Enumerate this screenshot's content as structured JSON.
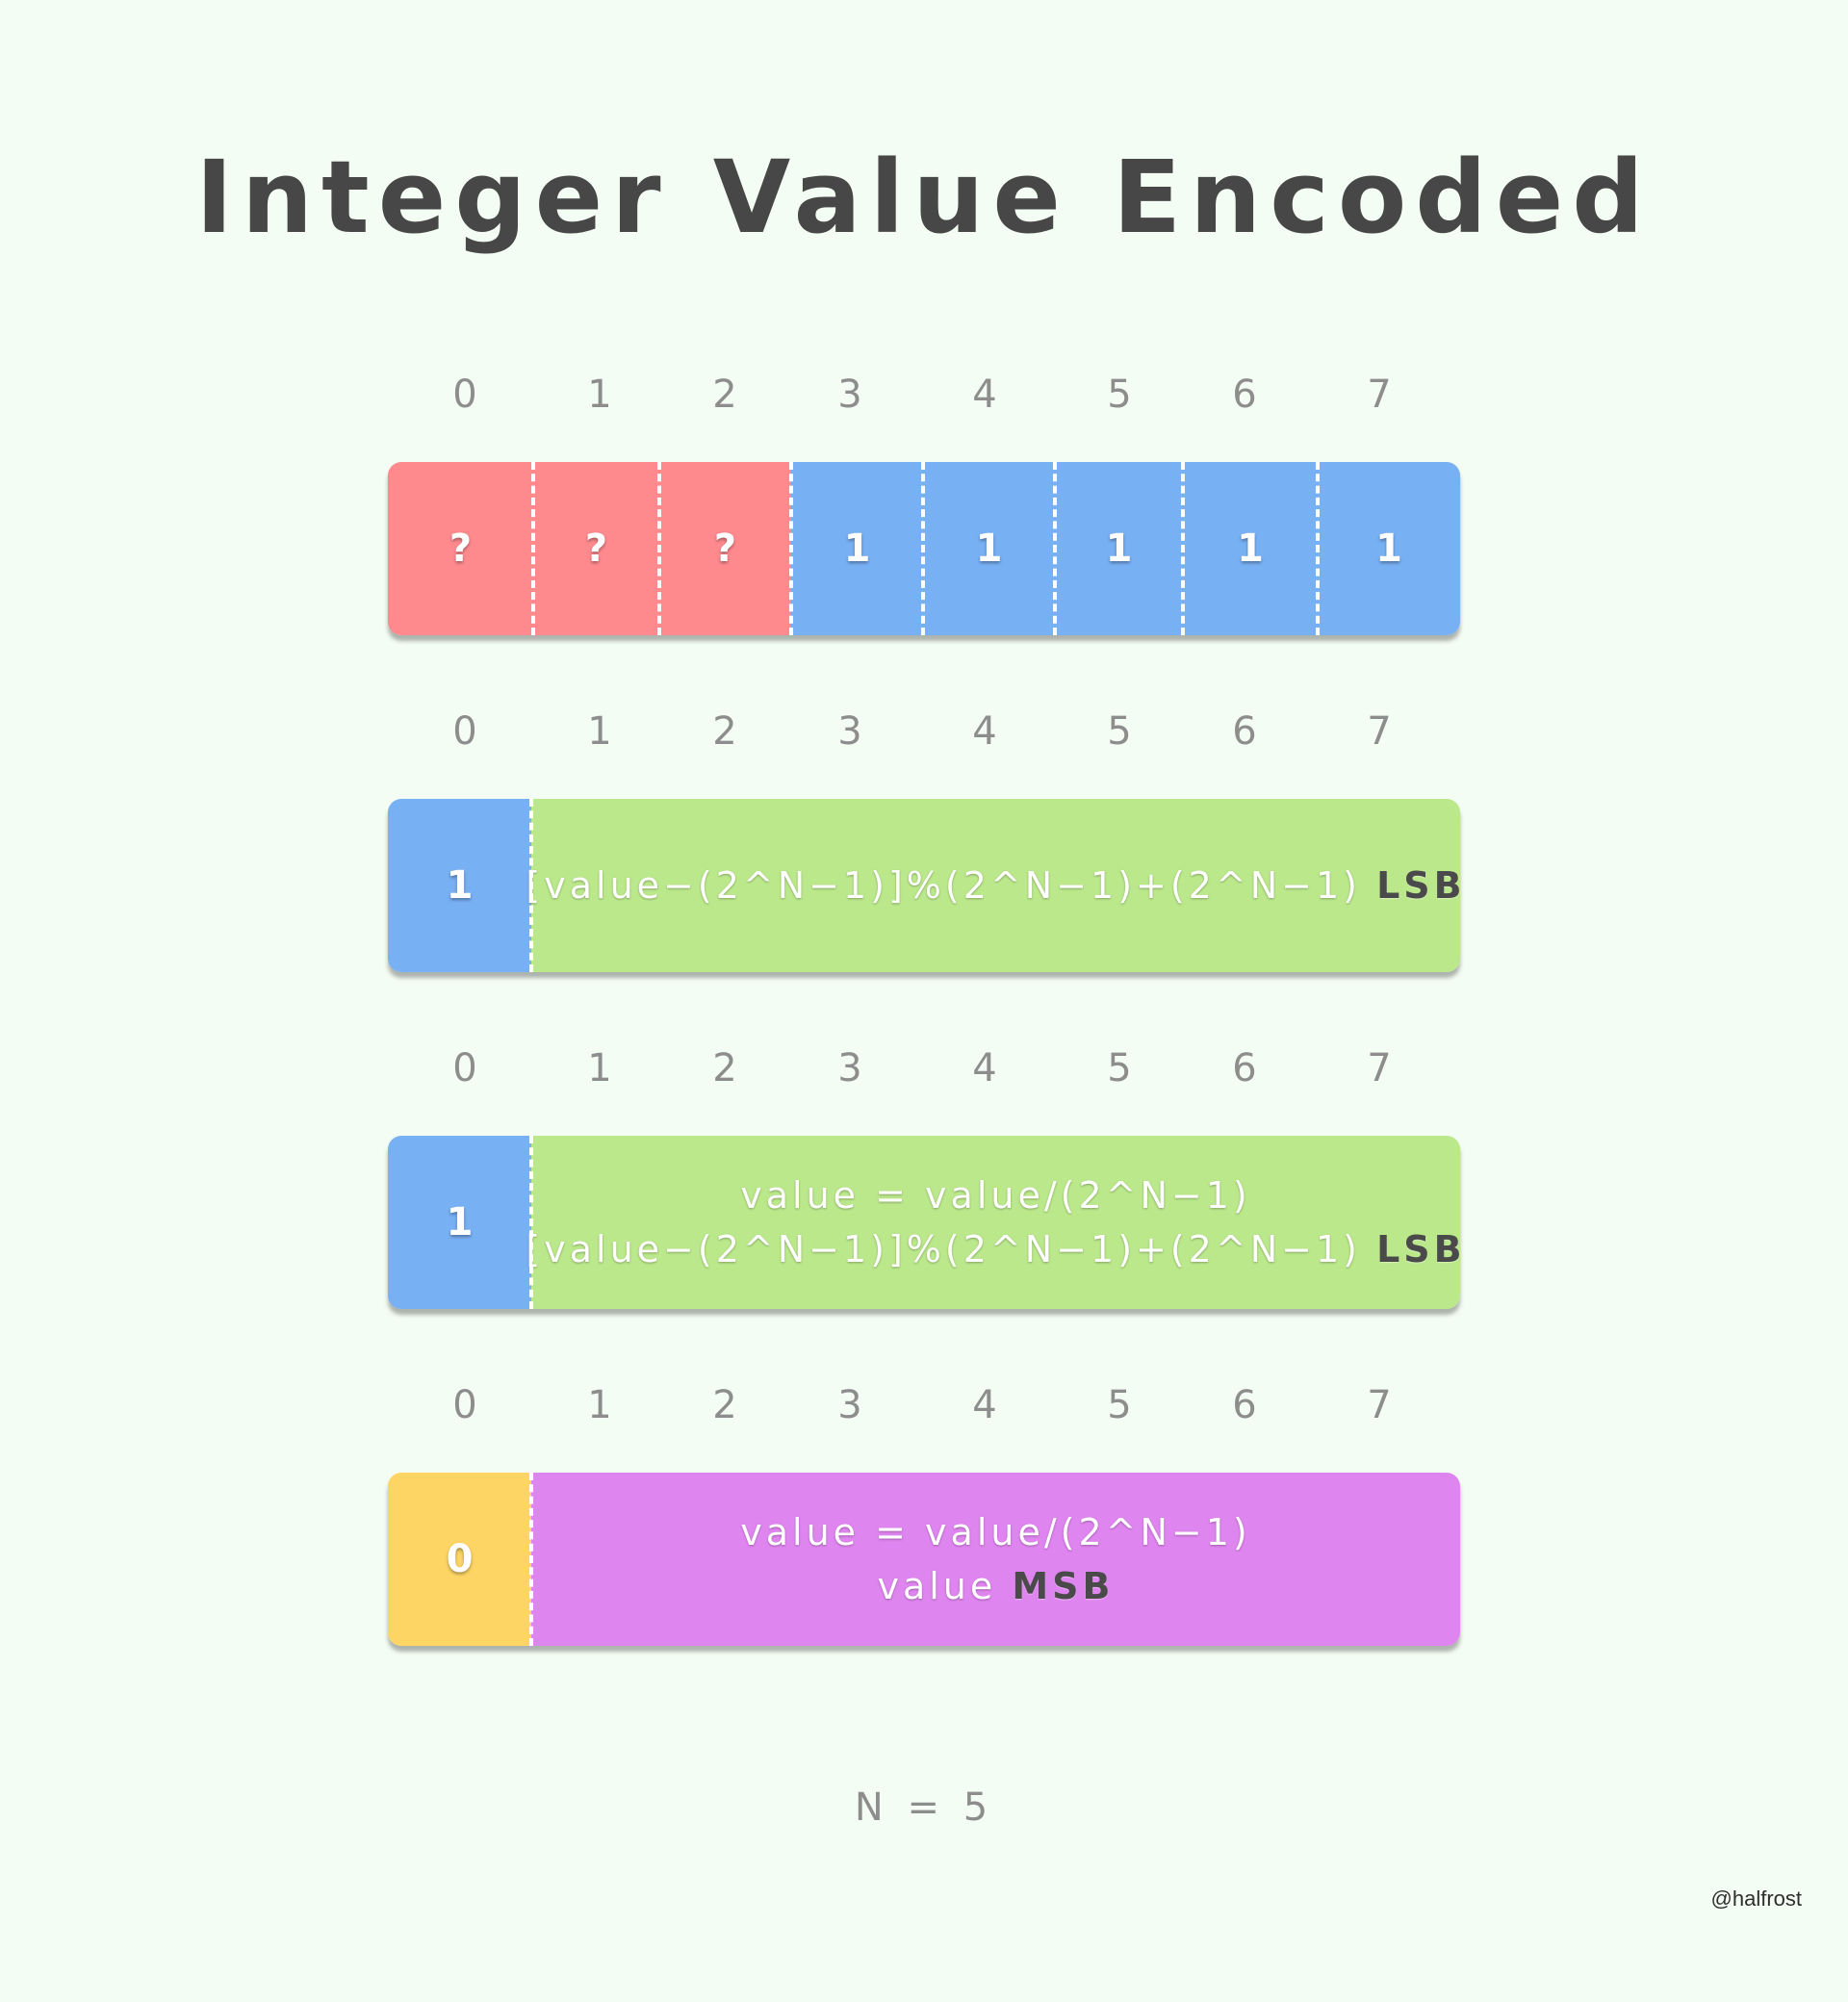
{
  "title": "Integer Value Encoded",
  "bit_indices": [
    "0",
    "1",
    "2",
    "3",
    "4",
    "5",
    "6",
    "7"
  ],
  "colors": {
    "background": "#f4fdf4",
    "red": "#fe8a8e",
    "blue": "#78b0f4",
    "green": "#bbe88b",
    "yellow": "#fdd565",
    "purple": "#df85ef"
  },
  "rows": [
    {
      "cells": [
        "?",
        "?",
        "?",
        "1",
        "1",
        "1",
        "1",
        "1"
      ]
    },
    {
      "flag": "1",
      "line1": "[value−(2^N−1)]%(2^N−1)+(2^N−1)",
      "line1_suffix": "LSB"
    },
    {
      "flag": "1",
      "line1": "value = value/(2^N−1)",
      "line2": "[value−(2^N−1)]%(2^N−1)+(2^N−1)",
      "line2_suffix": "LSB"
    },
    {
      "flag": "0",
      "line1": "value = value/(2^N−1)",
      "line2": "value",
      "line2_suffix": "MSB"
    }
  ],
  "footnote": "N = 5",
  "credit": "@halfrost"
}
